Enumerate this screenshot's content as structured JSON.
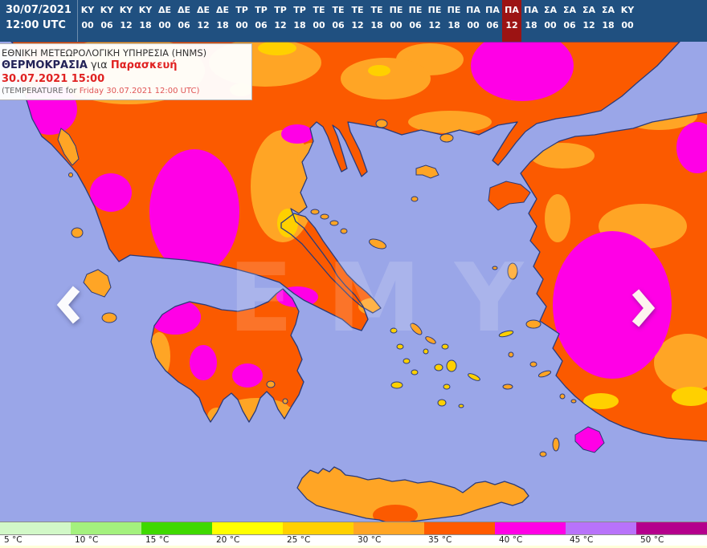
{
  "topbar": {
    "date": "30/07/2021",
    "time": "12:00 UTC",
    "selected_index": 22,
    "steps": [
      {
        "day": "ΚΥ",
        "hour": "00"
      },
      {
        "day": "ΚΥ",
        "hour": "06"
      },
      {
        "day": "ΚΥ",
        "hour": "12"
      },
      {
        "day": "ΚΥ",
        "hour": "18"
      },
      {
        "day": "ΔΕ",
        "hour": "00"
      },
      {
        "day": "ΔΕ",
        "hour": "06"
      },
      {
        "day": "ΔΕ",
        "hour": "12"
      },
      {
        "day": "ΔΕ",
        "hour": "18"
      },
      {
        "day": "ΤΡ",
        "hour": "00"
      },
      {
        "day": "ΤΡ",
        "hour": "06"
      },
      {
        "day": "ΤΡ",
        "hour": "12"
      },
      {
        "day": "ΤΡ",
        "hour": "18"
      },
      {
        "day": "ΤΕ",
        "hour": "00"
      },
      {
        "day": "ΤΕ",
        "hour": "06"
      },
      {
        "day": "ΤΕ",
        "hour": "12"
      },
      {
        "day": "ΤΕ",
        "hour": "18"
      },
      {
        "day": "ΠΕ",
        "hour": "00"
      },
      {
        "day": "ΠΕ",
        "hour": "06"
      },
      {
        "day": "ΠΕ",
        "hour": "12"
      },
      {
        "day": "ΠΕ",
        "hour": "18"
      },
      {
        "day": "ΠΑ",
        "hour": "00"
      },
      {
        "day": "ΠΑ",
        "hour": "06"
      },
      {
        "day": "ΠΑ",
        "hour": "12"
      },
      {
        "day": "ΠΑ",
        "hour": "18"
      },
      {
        "day": "ΣΑ",
        "hour": "00"
      },
      {
        "day": "ΣΑ",
        "hour": "06"
      },
      {
        "day": "ΣΑ",
        "hour": "12"
      },
      {
        "day": "ΣΑ",
        "hour": "18"
      },
      {
        "day": "ΚΥ",
        "hour": "00"
      }
    ]
  },
  "info_box": {
    "line1": "ΕΘΝΙΚΗ ΜΕΤΕΩΡΟΛΟΓΙΚΗ ΥΠΗΡΕΣΙΑ (HNMS)",
    "line2_label": "ΘΕΡΜΟΚΡΑΣΙΑ",
    "line2_mid": " για ",
    "line2_value": "Παρασκευή 30.07.2021 15:00",
    "line3_prefix": "(TEMPERATURE for ",
    "line3_value": "Friday 30.07.2021 12:00 UTC)"
  },
  "map": {
    "watermark": "ΕΜΥ"
  },
  "legend": {
    "items": [
      {
        "label": "5 °C",
        "color": "#d2f8c8"
      },
      {
        "label": "10 °C",
        "color": "#a4f17e"
      },
      {
        "label": "15 °C",
        "color": "#3fd900"
      },
      {
        "label": "20 °C",
        "color": "#ffff00"
      },
      {
        "label": "25 °C",
        "color": "#ffd000"
      },
      {
        "label": "30 °C",
        "color": "#ffa525"
      },
      {
        "label": "35 °C",
        "color": "#ff5a00"
      },
      {
        "label": "40 °C",
        "color": "#ff00e6"
      },
      {
        "label": "45 °C",
        "color": "#b873fa"
      },
      {
        "label": "50 °C",
        "color": "#b4008c"
      }
    ]
  },
  "colors": {
    "topbar_bg": "#205080",
    "selected": "#9c1313",
    "sea": "#9aa6e8",
    "coast": "#2a3a78",
    "temp_hot": "#fb5a00",
    "temp_amber": "#ffa525",
    "temp_gold": "#ffd000",
    "temp_magenta": "#ff00e6",
    "info_red": "#e02222"
  }
}
